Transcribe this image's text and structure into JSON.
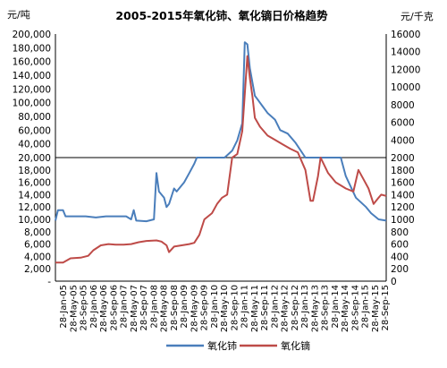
{
  "chart_data": {
    "type": "line",
    "title": "2005-2015年氧化铈、氧化镝日价格趋势",
    "left_axis_unit": "元/吨",
    "right_axis_unit": "元/千克",
    "left_ticks_lower": [
      "-",
      "2,000",
      "4,000",
      "6,000",
      "8,000",
      "10,000",
      "12,000",
      "14,000",
      "16,000",
      "18,000",
      "20,000"
    ],
    "left_ticks_upper": [
      "20,000",
      "40,000",
      "60,000",
      "80,000",
      "100,000",
      "120,000",
      "140,000",
      "160,000",
      "180,000",
      "200,000"
    ],
    "right_ticks_lower": [
      "0",
      "200",
      "400",
      "600",
      "800",
      "1000",
      "1200",
      "1400",
      "1600",
      "1800",
      "2000"
    ],
    "right_ticks_upper": [
      "2000",
      "4000",
      "6000",
      "8000",
      "10000",
      "12000",
      "14000",
      "16000"
    ],
    "x_tick_labels": [
      "28-Jan-05",
      "28-May-05",
      "28-Sep-05",
      "28-Jan-06",
      "28-May-06",
      "28-Sep-06",
      "28-Jan-07",
      "28-May-07",
      "28-Sep-07",
      "28-Jan-08",
      "28-May-08",
      "28-Sep-08",
      "28-Jan-09",
      "28-May-09",
      "28-Sep-09",
      "28-Jan-10",
      "28-May-10",
      "28-Sep-10",
      "28-Jan-11",
      "28-May-11",
      "28-Sep-11",
      "28-Jan-12",
      "28-May-12",
      "28-Sep-12",
      "28-Jan-13",
      "28-May-13",
      "28-Sep-13",
      "28-Jan-14",
      "28-May-14",
      "28-Sep-14",
      "28-Jan-15",
      "28-May-15",
      "28-Sep-15"
    ],
    "series": [
      {
        "name": "氧化铈",
        "axis": "left",
        "color": "#4a7ebb",
        "points": [
          [
            "28-Jan-05",
            9800
          ],
          [
            "28-Feb-05",
            11500
          ],
          [
            "28-Apr-05",
            11500
          ],
          [
            "28-May-05",
            10500
          ],
          [
            "28-Jul-05",
            10500
          ],
          [
            "28-Sep-05",
            10500
          ],
          [
            "28-Jan-06",
            10500
          ],
          [
            "28-May-06",
            10300
          ],
          [
            "28-Sep-06",
            10500
          ],
          [
            "28-Jan-07",
            10500
          ],
          [
            "28-May-07",
            10500
          ],
          [
            "28-Jul-07",
            10000
          ],
          [
            "28-Aug-07",
            11500
          ],
          [
            "28-Sep-07",
            9800
          ],
          [
            "28-Jan-08",
            9700
          ],
          [
            "28-Apr-08",
            10000
          ],
          [
            "28-May-08",
            17500
          ],
          [
            "28-Jun-08",
            14500
          ],
          [
            "28-Aug-08",
            13500
          ],
          [
            "28-Sep-08",
            12000
          ],
          [
            "28-Oct-08",
            12500
          ],
          [
            "28-Dec-08",
            15000
          ],
          [
            "28-Jan-09",
            14500
          ],
          [
            "28-Apr-09",
            16000
          ],
          [
            "28-Jun-09",
            17500
          ],
          [
            "28-Aug-09",
            19000
          ],
          [
            "28-Sep-09",
            20000
          ],
          [
            "28-Aug-10",
            20000
          ],
          [
            "28-Nov-10",
            30000
          ],
          [
            "28-Jan-11",
            45000
          ],
          [
            "28-Mar-11",
            70000
          ],
          [
            "28-Apr-11",
            188000
          ],
          [
            "28-May-11",
            185000
          ],
          [
            "28-Jun-11",
            150000
          ],
          [
            "28-Jul-11",
            130000
          ],
          [
            "28-Aug-11",
            110000
          ],
          [
            "28-Sep-11",
            105000
          ],
          [
            "28-Oct-11",
            100000
          ],
          [
            "28-Nov-11",
            95000
          ],
          [
            "28-Jan-12",
            85000
          ],
          [
            "28-Apr-12",
            75000
          ],
          [
            "28-Jun-12",
            60000
          ],
          [
            "28-Sep-12",
            55000
          ],
          [
            "28-Dec-12",
            42000
          ],
          [
            "28-Apr-13",
            20000
          ],
          [
            "28-Jun-14",
            20000
          ],
          [
            "28-Aug-14",
            17000
          ],
          [
            "28-Dec-14",
            13500
          ],
          [
            "28-Apr-15",
            12000
          ],
          [
            "28-Jun-15",
            11000
          ],
          [
            "28-Sep-15",
            10000
          ],
          [
            "28-Dec-15",
            9800
          ]
        ]
      },
      {
        "name": "氧化镝",
        "axis": "right",
        "color": "#be4b48",
        "points": [
          [
            "28-Jan-05",
            300
          ],
          [
            "28-Apr-05",
            300
          ],
          [
            "28-Jul-05",
            370
          ],
          [
            "28-Nov-05",
            380
          ],
          [
            "28-Feb-06",
            410
          ],
          [
            "28-Apr-06",
            500
          ],
          [
            "28-Jul-06",
            580
          ],
          [
            "28-Oct-06",
            600
          ],
          [
            "28-Jan-07",
            590
          ],
          [
            "28-Apr-07",
            590
          ],
          [
            "28-Jul-07",
            600
          ],
          [
            "28-Oct-07",
            630
          ],
          [
            "28-Jan-08",
            650
          ],
          [
            "28-May-08",
            660
          ],
          [
            "28-Jul-08",
            640
          ],
          [
            "28-Sep-08",
            580
          ],
          [
            "28-Oct-08",
            470
          ],
          [
            "28-Dec-08",
            560
          ],
          [
            "28-Mar-09",
            580
          ],
          [
            "28-Jun-09",
            600
          ],
          [
            "28-Aug-09",
            620
          ],
          [
            "28-Oct-09",
            750
          ],
          [
            "28-Dec-09",
            1000
          ],
          [
            "28-Mar-10",
            1100
          ],
          [
            "28-May-10",
            1250
          ],
          [
            "28-Jul-10",
            1350
          ],
          [
            "28-Sep-10",
            1400
          ],
          [
            "28-Nov-10",
            2000
          ],
          [
            "28-Jan-11",
            2400
          ],
          [
            "28-Mar-11",
            5000
          ],
          [
            "28-May-11",
            13500
          ],
          [
            "28-Jun-11",
            11000
          ],
          [
            "28-Jul-11",
            9000
          ],
          [
            "28-Aug-11",
            6500
          ],
          [
            "28-Oct-11",
            5500
          ],
          [
            "28-Jan-12",
            4500
          ],
          [
            "28-Apr-12",
            4000
          ],
          [
            "28-Jul-12",
            3500
          ],
          [
            "28-Oct-12",
            3000
          ],
          [
            "28-Jan-13",
            2600
          ],
          [
            "28-Apr-13",
            1800
          ],
          [
            "28-Jun-13",
            1300
          ],
          [
            "28-Jul-13",
            1300
          ],
          [
            "28-Sep-13",
            1700
          ],
          [
            "28-Oct-13",
            2000
          ],
          [
            "28-Jan-14",
            1750
          ],
          [
            "28-Apr-14",
            1600
          ],
          [
            "28-Aug-14",
            1500
          ],
          [
            "28-Nov-14",
            1450
          ],
          [
            "28-Jan-15",
            1800
          ],
          [
            "28-Mar-15",
            1650
          ],
          [
            "28-May-15",
            1500
          ],
          [
            "28-Jul-15",
            1250
          ],
          [
            "28-Sep-15",
            1350
          ],
          [
            "28-Oct-15",
            1400
          ],
          [
            "28-Dec-15",
            1380
          ]
        ]
      }
    ],
    "legend_position": "bottom",
    "grid": false
  }
}
